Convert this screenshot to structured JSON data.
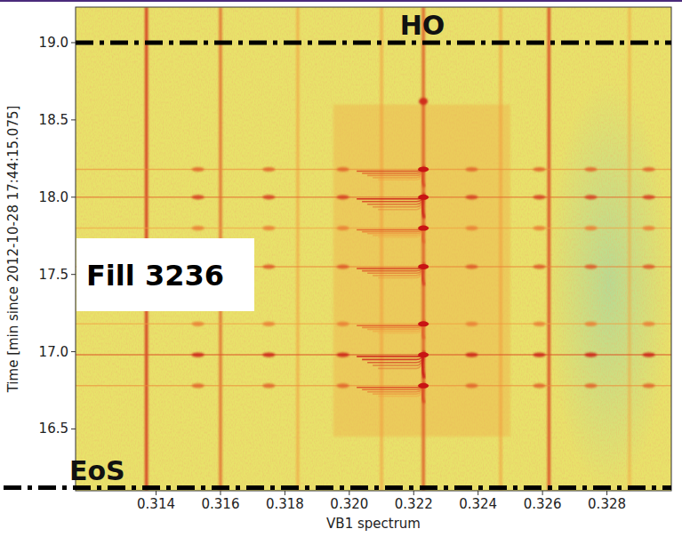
{
  "chart_data": {
    "type": "spectrogram",
    "x_label": "VB1 spectrum",
    "y_label": "Time [min since 2012-10-28 17:44:15.075]",
    "xlim": [
      0.3115,
      0.33
    ],
    "ylim": [
      16.1,
      19.23
    ],
    "xticks": [
      0.314,
      0.316,
      0.318,
      {
        "value": 0.32,
        "label": "0.320"
      },
      0.322,
      0.324,
      0.326,
      0.328
    ],
    "yticks": [
      16.5,
      {
        "value": 17.0,
        "label": "17.0"
      },
      17.5,
      {
        "value": 18.0,
        "label": "18.0"
      },
      18.5,
      {
        "value": 19.0,
        "label": "19.0"
      }
    ],
    "color_range": [
      0,
      1
    ],
    "lines": {
      "x": [
        0.3137,
        0.316,
        0.3184,
        0.321,
        0.3223,
        0.3247,
        0.3262,
        0.3287
      ],
      "intensity": [
        0.55,
        0.4,
        0.2,
        0.2,
        0.45,
        0.2,
        0.5,
        0.15
      ]
    },
    "bands": [
      {
        "from": 0.3195,
        "to": 0.325,
        "intensity": 0.3
      }
    ],
    "events": {
      "y": [
        18.18,
        18.0,
        17.8,
        17.55,
        17.18,
        16.98,
        16.78
      ],
      "intensity": [
        0.7,
        0.85,
        0.6,
        0.75,
        0.6,
        0.95,
        0.7
      ]
    },
    "peaks_x": [
      0.3153,
      0.3175,
      0.3198,
      0.3238,
      0.3259,
      0.3275,
      0.3293
    ],
    "center_x": 0.3223,
    "spots": [
      {
        "x": 0.3223,
        "y": 18.62,
        "intensity": 0.6
      }
    ],
    "markers": [
      {
        "label": "HO",
        "y": 19.0
      },
      {
        "label": "EoS",
        "y": 16.12
      }
    ],
    "annotation": "Fill 3236"
  }
}
